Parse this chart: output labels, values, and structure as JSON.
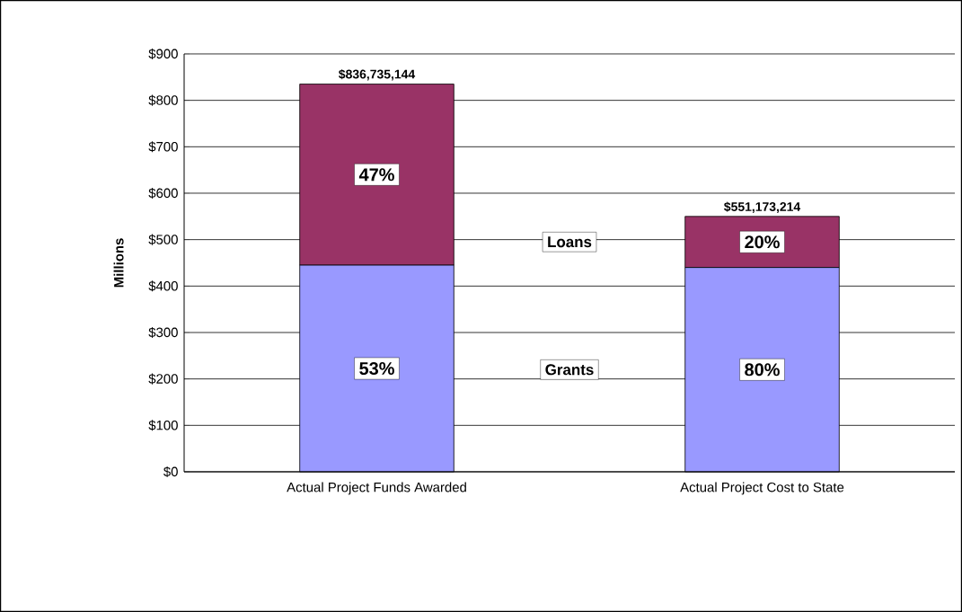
{
  "chart_data": {
    "type": "bar",
    "stacked": true,
    "categories": [
      "Actual Project Funds Awarded",
      "Actual Project Cost to State"
    ],
    "series": [
      {
        "name": "Grants",
        "color": "#9999ff",
        "values": [
          445,
          440
        ]
      },
      {
        "name": "Loans",
        "color": "#993366",
        "values": [
          390,
          110
        ]
      }
    ],
    "annotations": [
      "53%",
      "80%",
      "47%",
      "20%",
      {
        "text": "$836,735,144",
        "x": "Actual Project Funds Awarded",
        "y": 836.7
      },
      {
        "text": "$551,173,214",
        "x": "Actual Project Cost to State",
        "y": 551.2
      }
    ],
    "ylabel": "Millions",
    "ylim": [
      0,
      900
    ],
    "yticks": [
      {
        "value": 0,
        "label": "$0"
      },
      {
        "value": 100,
        "label": "$100"
      },
      {
        "value": 200,
        "label": "$200"
      },
      {
        "value": 300,
        "label": "$300"
      },
      {
        "value": 400,
        "label": "$400"
      },
      {
        "value": 500,
        "label": "$500"
      },
      {
        "value": 600,
        "label": "$600"
      },
      {
        "value": 700,
        "label": "$700"
      },
      {
        "value": 800,
        "label": "$800"
      },
      {
        "value": 900,
        "label": "$900"
      }
    ],
    "grid": "y",
    "legend": false
  }
}
